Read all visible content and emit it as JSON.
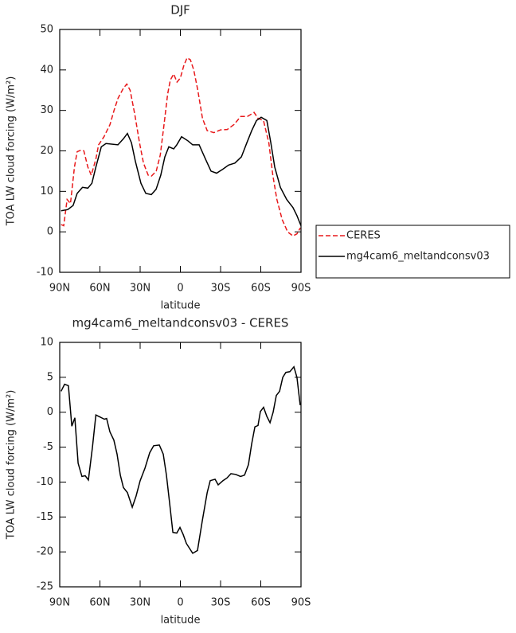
{
  "chart_data": [
    {
      "type": "line",
      "title": "DJF",
      "xlabel": "latitude",
      "ylabel": "TOA LW cloud forcing (W/m²)",
      "xlim": [
        90,
        -90
      ],
      "xticks": [
        {
          "value": 90,
          "label": "90N"
        },
        {
          "value": 60,
          "label": "60N"
        },
        {
          "value": 30,
          "label": "30N"
        },
        0,
        {
          "value": -30,
          "label": "30S"
        },
        {
          "value": -60,
          "label": "60S"
        },
        {
          "value": -90,
          "label": "90S"
        }
      ],
      "ylim": [
        -10,
        50
      ],
      "yticks": [
        -10,
        0,
        10,
        20,
        30,
        40,
        50
      ],
      "legend": "outside right",
      "series": [
        {
          "name": "CERES",
          "color": "#e8191b",
          "linestyle": "dashed",
          "x": [
            89,
            87,
            84.5,
            82,
            79,
            77,
            74,
            72,
            69,
            66.5,
            63,
            61,
            57,
            52.5,
            49.5,
            46.5,
            42.5,
            40,
            37.5,
            34,
            30.5,
            27.5,
            24,
            21.5,
            18,
            15,
            12,
            9.5,
            7.5,
            5,
            2.5,
            0,
            -2.5,
            -5,
            -7.5,
            -10,
            -13,
            -16.5,
            -20,
            -25,
            -30,
            -35,
            -40,
            -45,
            -50,
            -55,
            -58,
            -62,
            -66,
            -69,
            -72,
            -76,
            -80,
            -84,
            -87,
            -89.5
          ],
          "values": [
            1.8,
            1.5,
            8,
            7,
            16,
            19.8,
            20.2,
            20,
            16,
            14,
            18,
            21.5,
            23.5,
            26.5,
            30,
            33,
            35.5,
            36.5,
            35,
            29,
            22,
            17,
            14,
            13.8,
            15,
            19,
            27,
            34,
            37.5,
            39,
            37,
            38,
            41,
            43,
            42.5,
            40,
            35,
            28,
            25,
            24.5,
            25.2,
            25.3,
            26.5,
            28.5,
            28.5,
            29.5,
            28,
            27.5,
            22,
            14,
            8,
            3,
            0,
            -1,
            -0.5,
            1
          ]
        },
        {
          "name": "mg4cam6_meltandconsv03",
          "color": "#000000",
          "linestyle": "solid",
          "x": [
            89,
            84,
            80,
            77,
            73,
            69,
            66,
            63,
            59,
            55.5,
            46.6,
            42.5,
            39.5,
            36.5,
            33.6,
            29.4,
            25.8,
            21.7,
            18.1,
            14.6,
            11.6,
            8.6,
            5,
            2.7,
            -0.9,
            -5.6,
            -9.2,
            -14,
            -18.7,
            -22.9,
            -27,
            -31.8,
            -36,
            -40.7,
            -45.5,
            -49.6,
            -53.2,
            -56.8,
            -60.3,
            -64.5,
            -67.5,
            -70.4,
            -74.6,
            -79.3,
            -84,
            -87,
            -90
          ],
          "values": [
            5.2,
            5.5,
            6.5,
            9.5,
            11,
            10.8,
            12,
            16,
            21,
            21.8,
            21.5,
            23,
            24.3,
            22,
            17.5,
            12,
            9.5,
            9.2,
            10.5,
            14,
            18.5,
            21,
            20.5,
            21.5,
            23.5,
            22.5,
            21.5,
            21.5,
            18,
            15,
            14.5,
            15.5,
            16.5,
            17,
            18.5,
            22,
            25,
            27.5,
            28.3,
            27.5,
            22,
            16,
            11,
            8,
            6,
            4,
            1.5
          ]
        }
      ]
    },
    {
      "type": "line",
      "title": "mg4cam6_meltandconsv03 - CERES",
      "xlabel": "latitude",
      "ylabel": "TOA LW cloud forcing (W/m²)",
      "xlim": [
        90,
        -90
      ],
      "xticks": [
        {
          "value": 90,
          "label": "90N"
        },
        {
          "value": 60,
          "label": "60N"
        },
        {
          "value": 30,
          "label": "30N"
        },
        0,
        {
          "value": -30,
          "label": "30S"
        },
        {
          "value": -60,
          "label": "60S"
        },
        {
          "value": -90,
          "label": "90S"
        }
      ],
      "ylim": [
        -25,
        10
      ],
      "yticks": [
        -25,
        -20,
        -15,
        -10,
        -5,
        0,
        5,
        10
      ],
      "series": [
        {
          "color": "#000000",
          "linestyle": "solid",
          "x": [
            89,
            86.4,
            83.5,
            81,
            78.7,
            76.3,
            73.4,
            71,
            68.6,
            65.6,
            63,
            59.7,
            56.7,
            55,
            52.6,
            49.6,
            47.2,
            44.8,
            42.5,
            39.5,
            35.9,
            33,
            30,
            26.4,
            22.9,
            19.9,
            15.7,
            12.8,
            10.4,
            8,
            5.6,
            2.7,
            0.3,
            -2.1,
            -4.5,
            -9.2,
            -12.8,
            -16.4,
            -20,
            -22.3,
            -25.9,
            -28.2,
            -31.8,
            -34.8,
            -37.7,
            -41.3,
            -44.9,
            -47.9,
            -50.8,
            -53.2,
            -55.6,
            -57.9,
            -59.7,
            -62.1,
            -64.5,
            -66.9,
            -69.2,
            -71.6,
            -74,
            -76.4,
            -78.7,
            -81.7,
            -84.7,
            -87,
            -89.4
          ],
          "values": [
            3,
            4,
            3.8,
            -2,
            -0.8,
            -7.3,
            -9.2,
            -9.1,
            -9.7,
            -5,
            -0.4,
            -0.7,
            -1,
            -0.9,
            -2.8,
            -4,
            -6,
            -9,
            -10.8,
            -11.5,
            -13.6,
            -12,
            -9.8,
            -8,
            -5.8,
            -4.8,
            -4.7,
            -6,
            -9,
            -13,
            -17.2,
            -17.3,
            -16.5,
            -17.5,
            -18.8,
            -20.2,
            -19.8,
            -15.5,
            -11.5,
            -9.8,
            -9.6,
            -10.4,
            -9.8,
            -9.4,
            -8.8,
            -8.9,
            -9.2,
            -9,
            -7.5,
            -4.5,
            -2.1,
            -1.9,
            0.1,
            0.7,
            -0.6,
            -1.5,
            0,
            2.4,
            3,
            5,
            5.7,
            5.8,
            6.5,
            5,
            1
          ]
        }
      ]
    }
  ]
}
